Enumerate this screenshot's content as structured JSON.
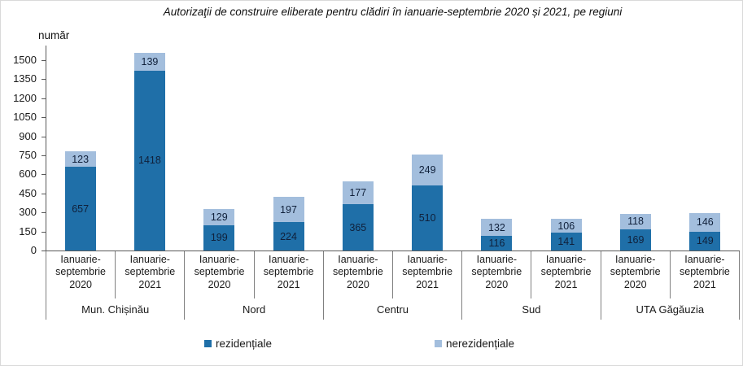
{
  "chart_data": {
    "type": "bar",
    "stacked": true,
    "title": "Autorizaţii de construire eliberate pentru clădiri în ianuarie-septembrie 2020 și 2021, pe regiuni",
    "ylabel": "număr",
    "regions": [
      "Mun. Chișinău",
      "Nord",
      "Centru",
      "Sud",
      "UTA Găgăuzia"
    ],
    "period_labels": [
      "Ianuarie-septembrie 2020",
      "Ianuarie-septembrie 2021"
    ],
    "categories": [
      "Mun. Chișinău Ianuarie-septembrie 2020",
      "Mun. Chișinău Ianuarie-septembrie 2021",
      "Nord Ianuarie-septembrie 2020",
      "Nord Ianuarie-septembrie 2021",
      "Centru Ianuarie-septembrie 2020",
      "Centru Ianuarie-septembrie 2021",
      "Sud Ianuarie-septembrie 2020",
      "Sud Ianuarie-septembrie 2021",
      "UTA Găgăuzia Ianuarie-septembrie 2020",
      "UTA Găgăuzia Ianuarie-septembrie 2021"
    ],
    "series": [
      {
        "name": "rezidențiale",
        "color": "#1F6FA8",
        "values": [
          657,
          1418,
          199,
          224,
          365,
          510,
          116,
          141,
          169,
          149
        ]
      },
      {
        "name": "nerezidențiale",
        "color": "#A3BEDD",
        "values": [
          123,
          139,
          129,
          197,
          177,
          249,
          132,
          106,
          118,
          146
        ]
      }
    ],
    "y_ticks": [
      0,
      150,
      300,
      450,
      600,
      750,
      900,
      1050,
      1200,
      1350,
      1500
    ],
    "ylim": [
      0,
      1615
    ],
    "grid": false,
    "legend_position": "bottom"
  }
}
